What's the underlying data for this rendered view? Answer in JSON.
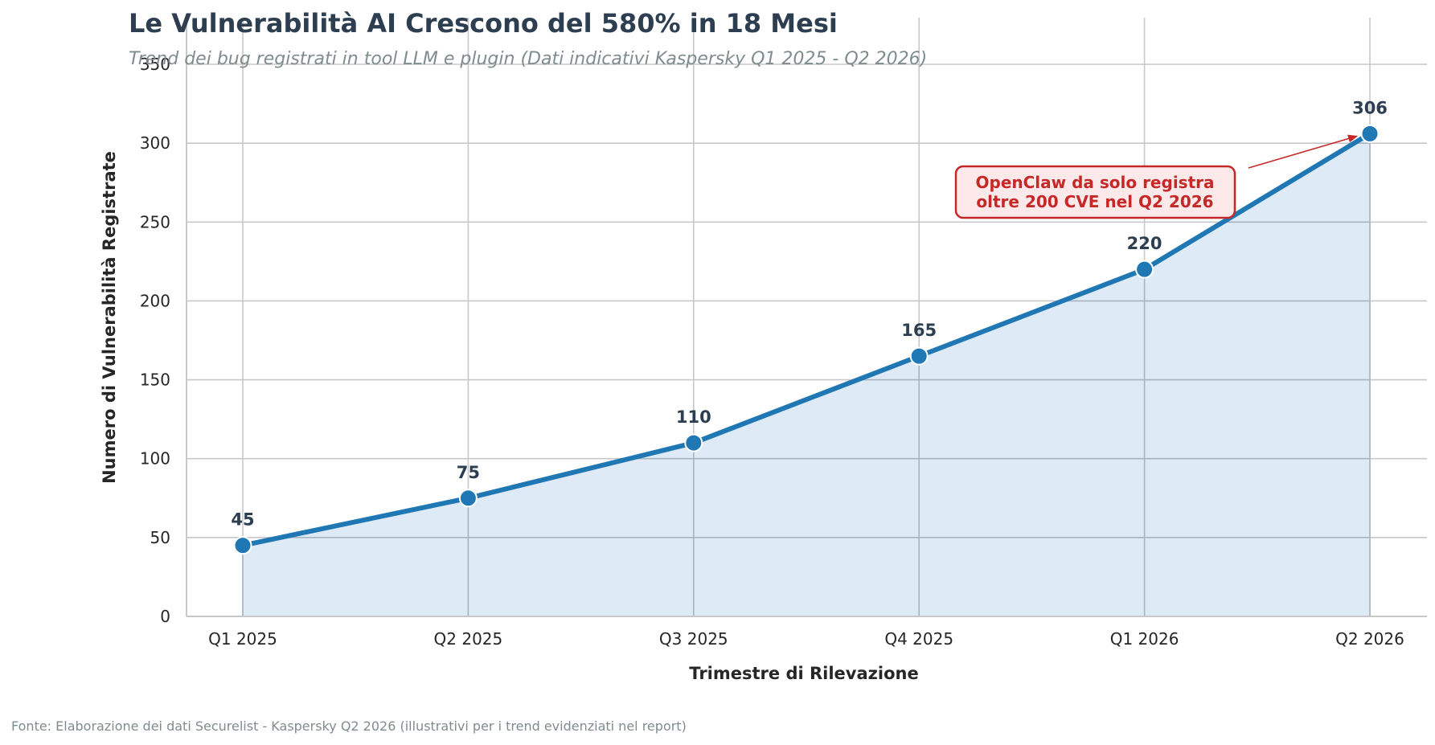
{
  "title": "Le Vulnerabilità AI Crescono del 580% in 18 Mesi",
  "subtitle": "Trend dei bug registrati in tool LLM e plugin (Dati indicativi Kaspersky Q1 2025 - Q2 2026)",
  "source": "Fonte: Elaborazione dei dati Securelist - Kaspersky Q2 2026 (illustrativi per i trend evidenziati nel report)",
  "colors": {
    "line": "#1f77b4",
    "fill": "#dce9f4",
    "grid": "#c8c8cc",
    "annotation": "#c62828",
    "annotation_bg": "#fde8ea",
    "title": "#2c3e50"
  },
  "chart_data": {
    "type": "line",
    "xlabel": "Trimestre di Rilevazione",
    "ylabel": "Numero di Vulnerabilità Registrate",
    "categories": [
      "Q1 2025",
      "Q2 2025",
      "Q3 2025",
      "Q4 2025",
      "Q1 2026",
      "Q2 2026"
    ],
    "values": [
      45,
      75,
      110,
      165,
      220,
      306
    ],
    "data_labels": [
      "45",
      "75",
      "110",
      "165",
      "220",
      "306"
    ],
    "ylim": [
      0,
      350
    ],
    "yticks": [
      0,
      50,
      100,
      150,
      200,
      250,
      300,
      350
    ],
    "grid": true,
    "area_fill": true,
    "annotation": {
      "lines": [
        "OpenClaw da solo registra",
        "oltre 200 CVE nel Q2 2026"
      ],
      "target_category": "Q2 2026",
      "target_value": 306
    }
  }
}
